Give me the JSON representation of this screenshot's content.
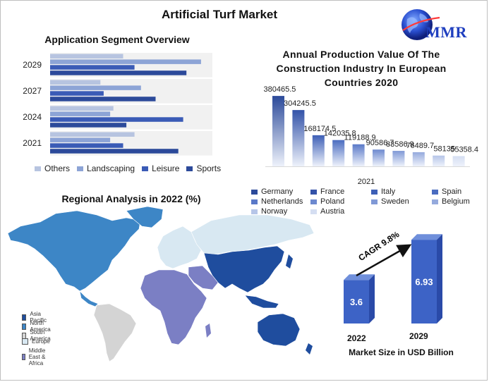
{
  "title": "Artificial Turf Market",
  "logo": {
    "text": "MMR",
    "icon": "globe-icon"
  },
  "application": {
    "title": "Application Segment Overview",
    "chart_data": {
      "type": "bar",
      "orientation": "horizontal",
      "categories": [
        "2029",
        "2027",
        "2024",
        "2021"
      ],
      "series": [
        {
          "name": "Others",
          "values": [
            0.45,
            0.31,
            0.39,
            0.52
          ],
          "color": "#b7c4e0"
        },
        {
          "name": "Landscaping",
          "values": [
            0.93,
            0.56,
            0.37,
            0.37
          ],
          "color": "#8da4d6"
        },
        {
          "name": "Leisure",
          "values": [
            0.52,
            0.33,
            0.82,
            0.45
          ],
          "color": "#3a5bb6"
        },
        {
          "name": "Sports",
          "values": [
            0.84,
            0.65,
            0.47,
            0.79
          ],
          "color": "#2c4a9a"
        }
      ],
      "xlim": [
        0,
        1
      ],
      "grid": false,
      "legend": "bottom"
    }
  },
  "production": {
    "title": "Annual Production Value Of The Construction Industry In European Countries 2020",
    "chart_data": {
      "type": "bar",
      "xlabel": "2021",
      "categories": [
        "Germany",
        "France",
        "Italy",
        "Spain",
        "Netherlands",
        "Poland",
        "Sweden",
        "Belgium",
        "Norway",
        "Austria"
      ],
      "values": [
        380465.5,
        304245.5,
        168174.5,
        142035.8,
        119188.9,
        90586.7,
        83586.9,
        76489.7,
        58135,
        55358.4
      ],
      "value_labels": [
        "380465.5",
        "304245.5",
        "168174.5",
        "142035.8",
        "119188.9",
        "90586.7",
        "83586.9",
        "76489.7",
        "58135",
        "55358.4"
      ],
      "colors": [
        "#2c4a9a",
        "#3352a8",
        "#3d5fb6",
        "#4a6cc0",
        "#5a79c8",
        "#6d89cf",
        "#8099d6",
        "#95aadd",
        "#b6c5e8",
        "#d5def2"
      ],
      "ylim": [
        0,
        400000
      ],
      "grid": false,
      "legend": "bottom"
    }
  },
  "regional": {
    "title": "Regional Analysis in 2022 (%)",
    "legend": [
      {
        "name": "Asia Pacific",
        "color": "#1f4d9e"
      },
      {
        "name": "North America",
        "color": "#3d86c6"
      },
      {
        "name": "South America",
        "color": "#d4d4d4"
      },
      {
        "name": "Europe",
        "color": "#d8e8f2"
      },
      {
        "name": "Middle East & Africa",
        "color": "#7b7fc4"
      }
    ]
  },
  "market_size": {
    "caption": "Market Size in USD Billion",
    "cagr": "CAGR 9.8%",
    "chart_data": {
      "type": "bar",
      "categories": [
        "2022",
        "2029"
      ],
      "values": [
        3.6,
        6.93
      ],
      "value_labels": [
        "3.6",
        "6.93"
      ],
      "ylim": [
        0,
        7
      ],
      "xlabel": "Market Size in USD Billion",
      "color": "#3d63c6"
    }
  }
}
